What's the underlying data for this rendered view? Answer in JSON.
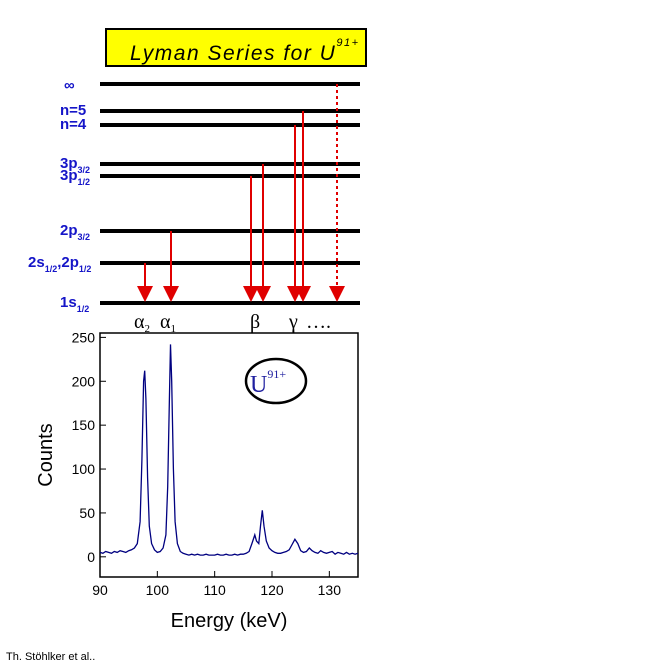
{
  "diagram": {
    "title": {
      "text": "Lyman Series for U",
      "sup": "91+"
    },
    "levels": [
      {
        "label": "∞"
      },
      {
        "label": "n=5"
      },
      {
        "label": "n=4"
      },
      {
        "label": "3p",
        "sub": "3/2"
      },
      {
        "label": "3p",
        "sub": "1/2"
      },
      {
        "label": "2p",
        "sub": "3/2"
      },
      {
        "label": "2s",
        "sub": "1/2",
        "label2": ",2p",
        "sub2": "1/2"
      },
      {
        "label": "1s",
        "sub": "1/2"
      }
    ],
    "transitions": [
      {
        "label": "α",
        "sub": "2"
      },
      {
        "label": "α",
        "sub": "1"
      },
      {
        "label": "β"
      },
      {
        "label": "γ"
      },
      {
        "label": "…."
      }
    ]
  },
  "chart_data": {
    "type": "line",
    "xlabel": "Energy (keV)",
    "ylabel": "Counts",
    "annotation": {
      "text": "U",
      "sup": "91+"
    },
    "color": "#000080",
    "xlim": [
      90,
      135
    ],
    "xticks": [
      90,
      100,
      110,
      120,
      130
    ],
    "ylim": [
      -23,
      255
    ],
    "yticks": [
      0,
      50,
      100,
      150,
      200,
      250
    ],
    "x": [
      90,
      90.5,
      91,
      91.5,
      92,
      92.5,
      93,
      93.5,
      94,
      94.5,
      95,
      95.5,
      96,
      96.5,
      97,
      97.3,
      97.6,
      97.8,
      98,
      98.3,
      98.6,
      99,
      99.5,
      100,
      100.5,
      101,
      101.5,
      101.8,
      102.1,
      102.3,
      102.5,
      102.8,
      103.1,
      103.5,
      104,
      104.5,
      105,
      105.5,
      106,
      106.5,
      107,
      107.5,
      108,
      108.5,
      109,
      109.5,
      110,
      110.5,
      111,
      111.5,
      112,
      112.5,
      113,
      113.5,
      114,
      114.5,
      115,
      115.5,
      116,
      116.5,
      117,
      117.3,
      117.7,
      118,
      118.3,
      118.6,
      119,
      119.5,
      120,
      120.5,
      121,
      121.5,
      122,
      122.5,
      123,
      123.5,
      124,
      124.5,
      125,
      125.5,
      126,
      126.5,
      127,
      127.5,
      128,
      128.5,
      129,
      129.5,
      130,
      130.5,
      131,
      131.5,
      132,
      132.5,
      133,
      133.5,
      134,
      134.5,
      135
    ],
    "values": [
      5,
      4,
      6,
      5,
      4,
      6,
      5,
      7,
      6,
      5,
      7,
      8,
      10,
      15,
      40,
      110,
      200,
      212,
      180,
      90,
      35,
      15,
      8,
      5,
      6,
      10,
      25,
      80,
      180,
      242,
      200,
      100,
      40,
      15,
      6,
      4,
      3,
      2,
      3,
      2,
      3,
      2,
      2,
      3,
      2,
      2,
      2,
      3,
      2,
      2,
      3,
      2,
      2,
      3,
      2,
      3,
      3,
      4,
      6,
      15,
      25,
      18,
      15,
      35,
      53,
      35,
      18,
      10,
      7,
      5,
      4,
      4,
      5,
      6,
      8,
      14,
      20,
      15,
      7,
      5,
      6,
      10,
      7,
      5,
      4,
      7,
      5,
      4,
      5,
      6,
      3,
      5,
      4,
      3,
      5,
      3,
      4,
      3,
      4
    ]
  },
  "credit": "Th. Stöhlker et al.."
}
